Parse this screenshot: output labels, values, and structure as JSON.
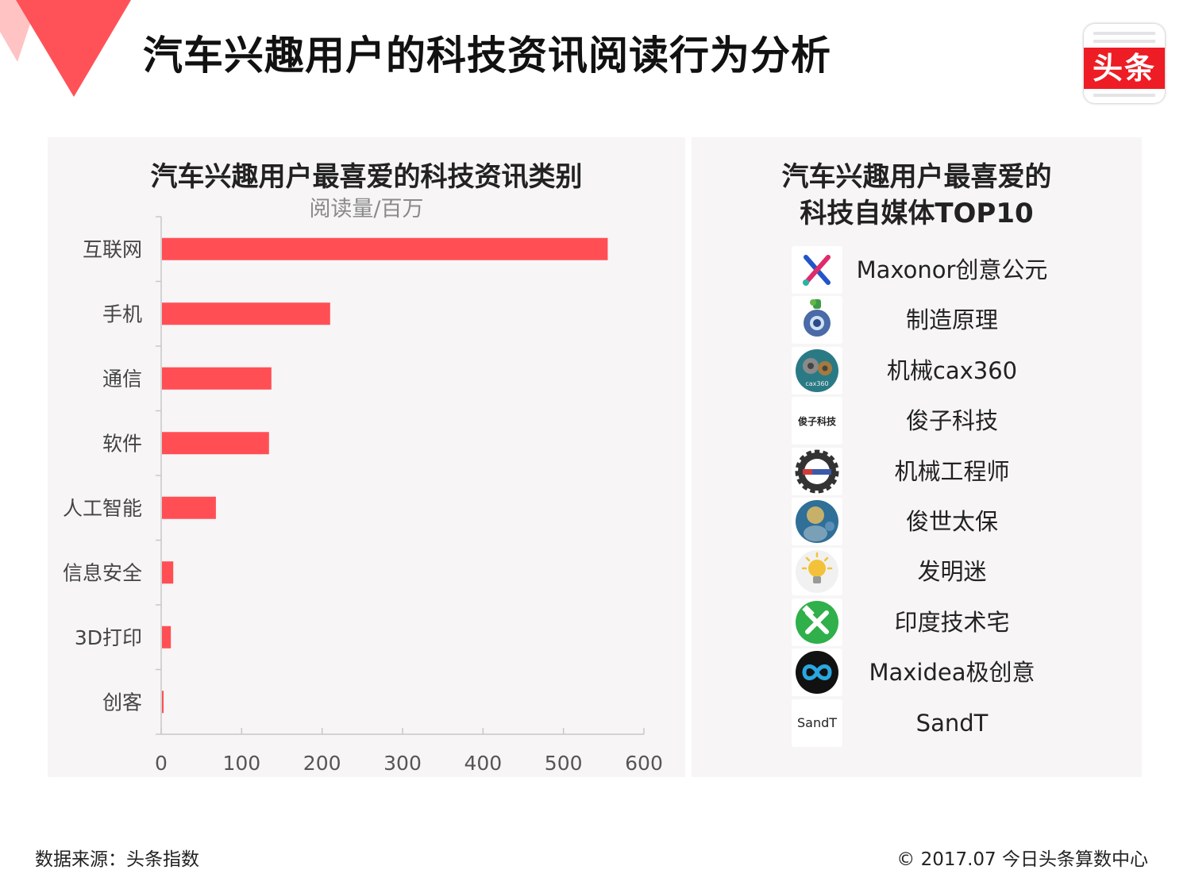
{
  "header": {
    "title": "汽车兴趣用户的科技资讯阅读行为分析"
  },
  "logo": {
    "text": "头条"
  },
  "chart_data": {
    "type": "bar",
    "orientation": "horizontal",
    "title": "汽车兴趣用户最喜爱的科技资讯类别",
    "subtitle": "阅读量/百万",
    "categories": [
      "互联网",
      "手机",
      "通信",
      "软件",
      "人工智能",
      "信息安全",
      "3D打印",
      "创客"
    ],
    "values": [
      555,
      210,
      137,
      134,
      68,
      15,
      12,
      3
    ],
    "xlim": [
      0,
      600
    ],
    "xticks": [
      "0",
      "100",
      "200",
      "300",
      "400",
      "500",
      "600"
    ],
    "bar_color": "#ff4f55",
    "grid": false
  },
  "ranking": {
    "title_line1": "汽车兴趣用户最喜爱的",
    "title_line2": "科技自媒体TOP10",
    "items": [
      {
        "name": "Maxonor创意公元",
        "icon": "x-logo-icon"
      },
      {
        "name": "制造原理",
        "icon": "gear-robot-icon"
      },
      {
        "name": "机械cax360",
        "icon": "gears-circle-icon"
      },
      {
        "name": "俊子科技",
        "icon": "text-logo-icon",
        "icon_text": "俊子科技"
      },
      {
        "name": "机械工程师",
        "icon": "gear-badge-icon"
      },
      {
        "name": "俊世太保",
        "icon": "portrait-icon"
      },
      {
        "name": "发明迷",
        "icon": "lightbulb-icon"
      },
      {
        "name": "印度技术宅",
        "icon": "tools-icon"
      },
      {
        "name": "Maxidea极创意",
        "icon": "infinity-icon"
      },
      {
        "name": "SandT",
        "icon": "sandt-text-icon",
        "icon_text": "SandT"
      }
    ]
  },
  "footer": {
    "source": "数据来源：头条指数",
    "copyright": "© 2017.07 今日头条算数中心"
  }
}
